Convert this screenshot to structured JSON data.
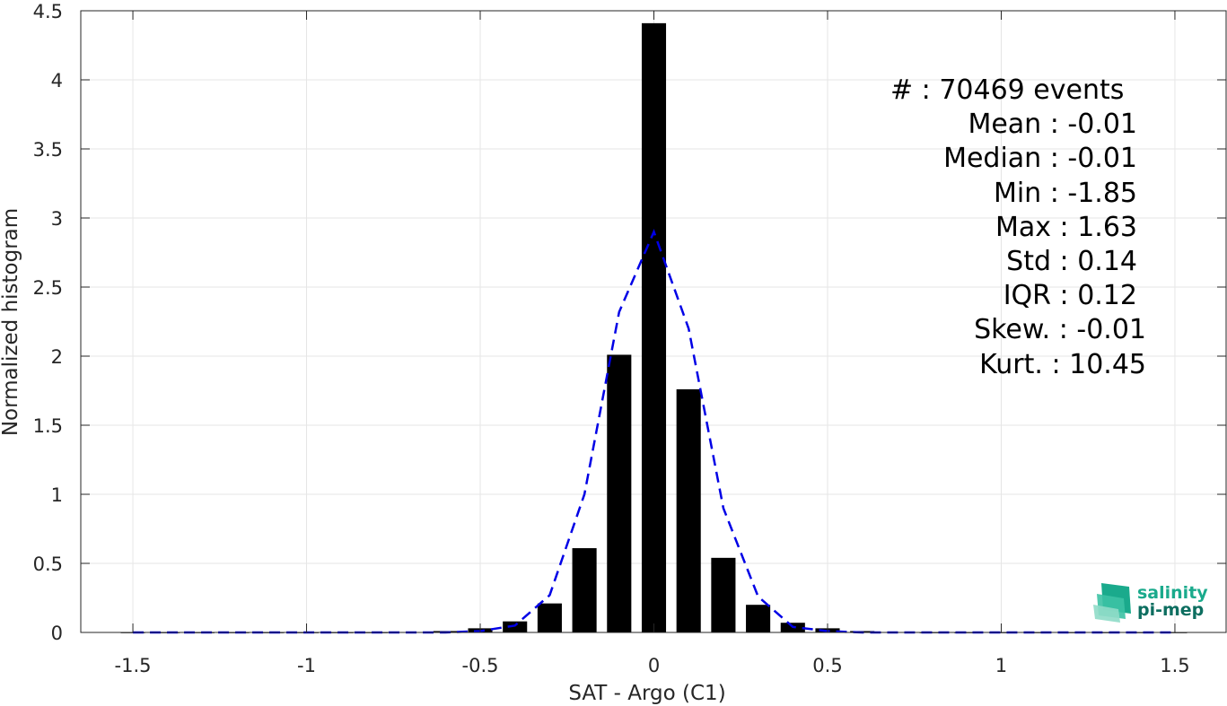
{
  "chart_data": {
    "type": "bar",
    "xlabel": "SAT - Argo (C1)",
    "ylabel": "Normalized histogram",
    "xlim": [
      -1.65,
      1.65
    ],
    "ylim": [
      0,
      4.5
    ],
    "xticks": [
      -1.5,
      -1,
      -0.5,
      0,
      0.5,
      1,
      1.5
    ],
    "xtick_labels": [
      "-1.5",
      "-1",
      "-0.5",
      "0",
      "0.5",
      "1",
      "1.5"
    ],
    "yticks": [
      0,
      0.5,
      1,
      1.5,
      2,
      2.5,
      3,
      3.5,
      4,
      4.5
    ],
    "ytick_labels": [
      "0",
      "0.5",
      "1",
      "1.5",
      "2",
      "2.5",
      "3",
      "3.5",
      "4",
      "4.5"
    ],
    "grid": true,
    "bar_color": "#000000",
    "bar_width": 0.07,
    "series": [
      {
        "kind": "bar",
        "x": [
          -1.5,
          -1.4,
          -1.3,
          -1.2,
          -1.1,
          -1.0,
          -0.9,
          -0.8,
          -0.7,
          -0.6,
          -0.5,
          -0.4,
          -0.3,
          -0.2,
          -0.1,
          0.0,
          0.1,
          0.2,
          0.3,
          0.4,
          0.5,
          0.6,
          0.7,
          0.8,
          0.9,
          1.0,
          1.1,
          1.2,
          1.3,
          1.4,
          1.5
        ],
        "values": [
          0.0,
          0.0,
          0.0,
          0.0,
          0.0,
          0.0,
          0.0,
          0.0,
          0.003,
          0.01,
          0.03,
          0.08,
          0.21,
          0.61,
          2.01,
          4.41,
          1.76,
          0.54,
          0.2,
          0.07,
          0.03,
          0.01,
          0.003,
          0.0,
          0.0,
          0.0,
          0.0,
          0.0,
          0.0,
          0.0,
          0.0
        ]
      },
      {
        "kind": "line",
        "style": "dashed",
        "color": "#0000e6",
        "x": [
          -1.5,
          -1.4,
          -1.3,
          -1.2,
          -1.1,
          -1.0,
          -0.9,
          -0.8,
          -0.7,
          -0.6,
          -0.5,
          -0.4,
          -0.3,
          -0.2,
          -0.1,
          0.0,
          0.1,
          0.2,
          0.3,
          0.4,
          0.5,
          0.6,
          0.7,
          0.8,
          0.9,
          1.0,
          1.1,
          1.2,
          1.3,
          1.4,
          1.5
        ],
        "values": [
          0,
          0,
          0,
          0,
          0,
          0,
          0,
          0,
          0,
          0,
          0.01,
          0.05,
          0.27,
          1.0,
          2.32,
          2.9,
          2.2,
          0.9,
          0.26,
          0.04,
          0.01,
          0,
          0,
          0,
          0,
          0,
          0,
          0,
          0,
          0,
          0
        ]
      }
    ],
    "annotations": [
      "#  : 70469 events",
      "Mean : -0.01",
      "Median : -0.01",
      "Min : -1.85",
      "Max : 1.63",
      "Std : 0.14",
      "IQR : 0.12",
      "Skew. : -0.01",
      "Kurt. : 10.45"
    ]
  },
  "logo": {
    "line1": "salinity",
    "line2": "pi-mep",
    "color1": "#1aaa8c",
    "color2": "#0d6e60"
  }
}
